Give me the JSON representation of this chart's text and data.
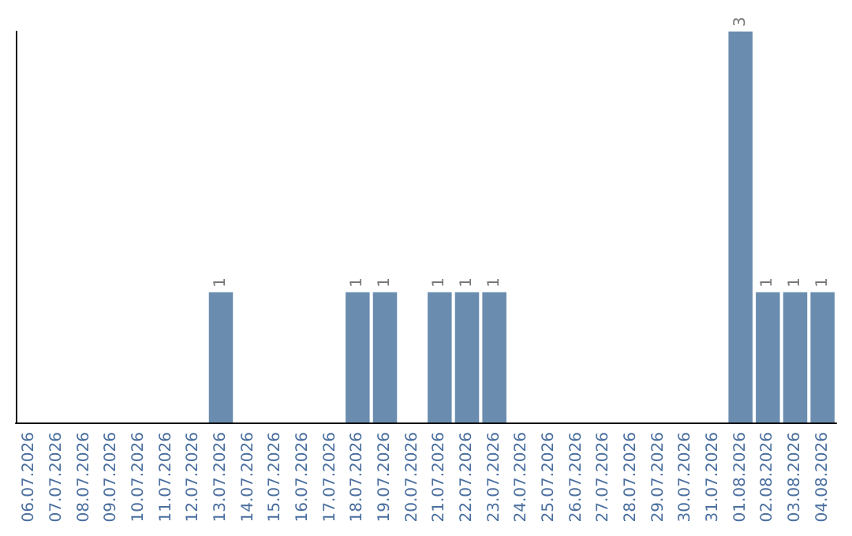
{
  "chart_data": {
    "type": "bar",
    "categories": [
      "06.07.2026",
      "07.07.2026",
      "08.07.2026",
      "09.07.2026",
      "10.07.2026",
      "11.07.2026",
      "12.07.2026",
      "13.07.2026",
      "14.07.2026",
      "15.07.2026",
      "16.07.2026",
      "17.07.2026",
      "18.07.2026",
      "19.07.2026",
      "20.07.2026",
      "21.07.2026",
      "22.07.2026",
      "23.07.2026",
      "24.07.2026",
      "25.07.2026",
      "26.07.2026",
      "27.07.2026",
      "28.07.2026",
      "29.07.2026",
      "30.07.2026",
      "31.07.2026",
      "01.08.2026",
      "02.08.2026",
      "03.08.2026",
      "04.08.2026"
    ],
    "values": [
      0,
      0,
      0,
      0,
      0,
      0,
      0,
      1,
      0,
      0,
      0,
      0,
      1,
      1,
      0,
      1,
      1,
      1,
      0,
      0,
      0,
      0,
      0,
      0,
      0,
      0,
      3,
      1,
      1,
      1
    ],
    "value_labels": [
      null,
      null,
      null,
      null,
      null,
      null,
      null,
      "1",
      null,
      null,
      null,
      null,
      "1",
      "1",
      null,
      "1",
      "1",
      "1",
      null,
      null,
      null,
      null,
      null,
      null,
      null,
      null,
      "3",
      "1",
      "1",
      "1"
    ],
    "color": "#6a8caf",
    "grid": false,
    "tick_labels": "x"
  }
}
